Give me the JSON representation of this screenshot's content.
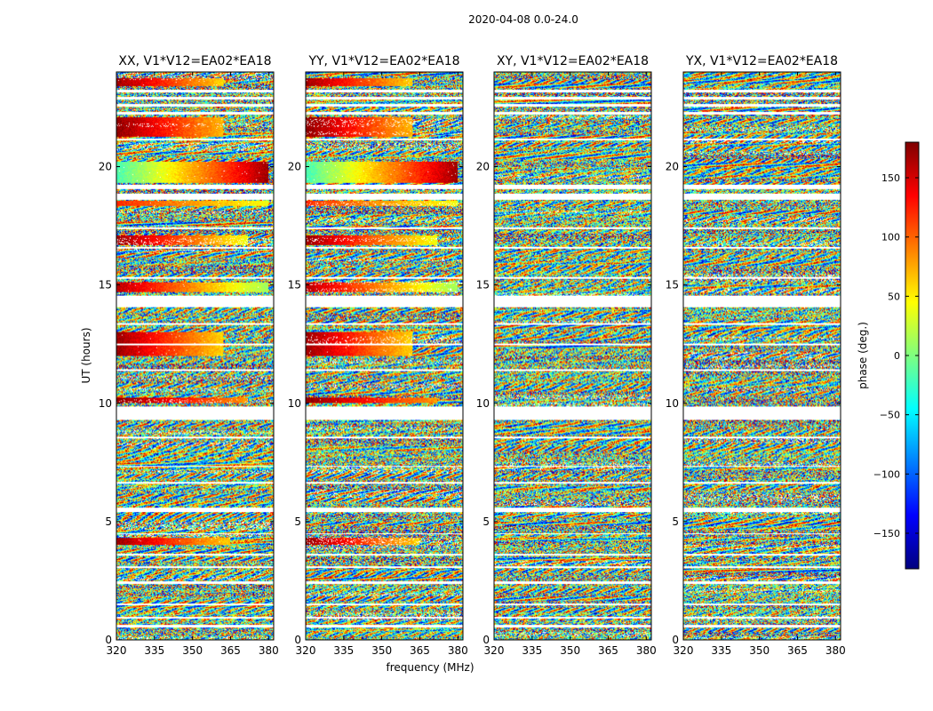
{
  "figure": {
    "suptitle": "2020-04-08 0.0-24.0",
    "xlabel": "frequency (MHz)",
    "ylabel": "UT (hours)"
  },
  "chart_data": {
    "type": "heatmap",
    "x_range_mhz": [
      320,
      382
    ],
    "y_range_hours": [
      0,
      24
    ],
    "x_ticks": [
      320,
      335,
      350,
      365,
      380
    ],
    "x_tick_labels": [
      "320",
      "335",
      "350",
      "365",
      "380"
    ],
    "y_ticks": [
      0,
      5,
      10,
      15,
      20
    ],
    "y_tick_labels": [
      "0",
      "5",
      "10",
      "15",
      "20"
    ],
    "panels": [
      {
        "title": "XX, V1*V12=EA02*EA18",
        "pol": "XX"
      },
      {
        "title": "YY, V1*V12=EA02*EA18",
        "pol": "YY"
      },
      {
        "title": "XY, V1*V12=EA02*EA18",
        "pol": "XY"
      },
      {
        "title": "YX, V1*V12=EA02*EA18",
        "pol": "YX"
      }
    ],
    "gaps_hours": [
      [
        0.54,
        0.62
      ],
      [
        0.9,
        0.96
      ],
      [
        1.45,
        1.52
      ],
      [
        2.35,
        2.48
      ],
      [
        3.05,
        3.12
      ],
      [
        3.55,
        3.62
      ],
      [
        4.45,
        4.5
      ],
      [
        5.4,
        5.58
      ],
      [
        6.6,
        6.68
      ],
      [
        7.3,
        7.36
      ],
      [
        8.5,
        8.57
      ],
      [
        9.3,
        9.88
      ],
      [
        11.35,
        11.45
      ],
      [
        12.45,
        12.52
      ],
      [
        13.3,
        13.38
      ],
      [
        14.05,
        14.55
      ],
      [
        15.25,
        15.33
      ],
      [
        16.55,
        16.63
      ],
      [
        17.35,
        17.42
      ],
      [
        18.6,
        18.85
      ],
      [
        19.05,
        19.25
      ],
      [
        21.1,
        21.18
      ],
      [
        22.2,
        22.3
      ],
      [
        22.55,
        22.65
      ],
      [
        22.85,
        22.95
      ],
      [
        23.15,
        23.25
      ]
    ],
    "coherent_bands": [
      {
        "pols": [
          "XX",
          "YY"
        ],
        "t_start": 4.0,
        "t_end": 4.3,
        "f_end": 365,
        "phase_start": 170,
        "phase_end": 60
      },
      {
        "pols": [
          "XX",
          "YY"
        ],
        "t_start": 10.0,
        "t_end": 10.25,
        "f_end": 372,
        "phase_start": 175,
        "phase_end": 80
      },
      {
        "pols": [
          "XX",
          "YY"
        ],
        "t_start": 12.0,
        "t_end": 13.0,
        "f_end": 362,
        "phase_start": 170,
        "phase_end": 60
      },
      {
        "pols": [
          "XX",
          "YY"
        ],
        "t_start": 14.7,
        "t_end": 15.1,
        "f_end": 380,
        "phase_start": 160,
        "phase_end": 10
      },
      {
        "pols": [
          "XX",
          "YY"
        ],
        "t_start": 16.7,
        "t_end": 17.1,
        "f_end": 372,
        "phase_start": 170,
        "phase_end": 40
      },
      {
        "pols": [
          "XX",
          "YY"
        ],
        "t_start": 18.35,
        "t_end": 18.55,
        "f_end": 380,
        "phase_start": 120,
        "phase_end": 40
      },
      {
        "pols": [
          "XX",
          "YY"
        ],
        "t_start": 19.3,
        "t_end": 20.2,
        "f_end": 380,
        "phase_start": -20,
        "phase_end": 170
      },
      {
        "pols": [
          "XX",
          "YY"
        ],
        "t_start": 21.25,
        "t_end": 22.1,
        "f_end": 362,
        "phase_start": 175,
        "phase_end": 70
      },
      {
        "pols": [
          "XX",
          "YY"
        ],
        "t_start": 23.4,
        "t_end": 23.75,
        "f_end": 362,
        "phase_start": 170,
        "phase_end": 60
      }
    ],
    "colorbar": {
      "label": "phase (deg.)",
      "range": [
        -180,
        180
      ],
      "ticks": [
        -150,
        -100,
        -50,
        0,
        50,
        100,
        150
      ],
      "tick_labels": [
        "−150",
        "−100",
        "−50",
        "0",
        "50",
        "100",
        "150"
      ],
      "colormap": "jet",
      "colormap_colors": [
        "#00007f",
        "#0000ff",
        "#007fff",
        "#00ffff",
        "#7fff7f",
        "#ffff00",
        "#ff7f00",
        "#ff0000",
        "#7f0000"
      ]
    }
  }
}
